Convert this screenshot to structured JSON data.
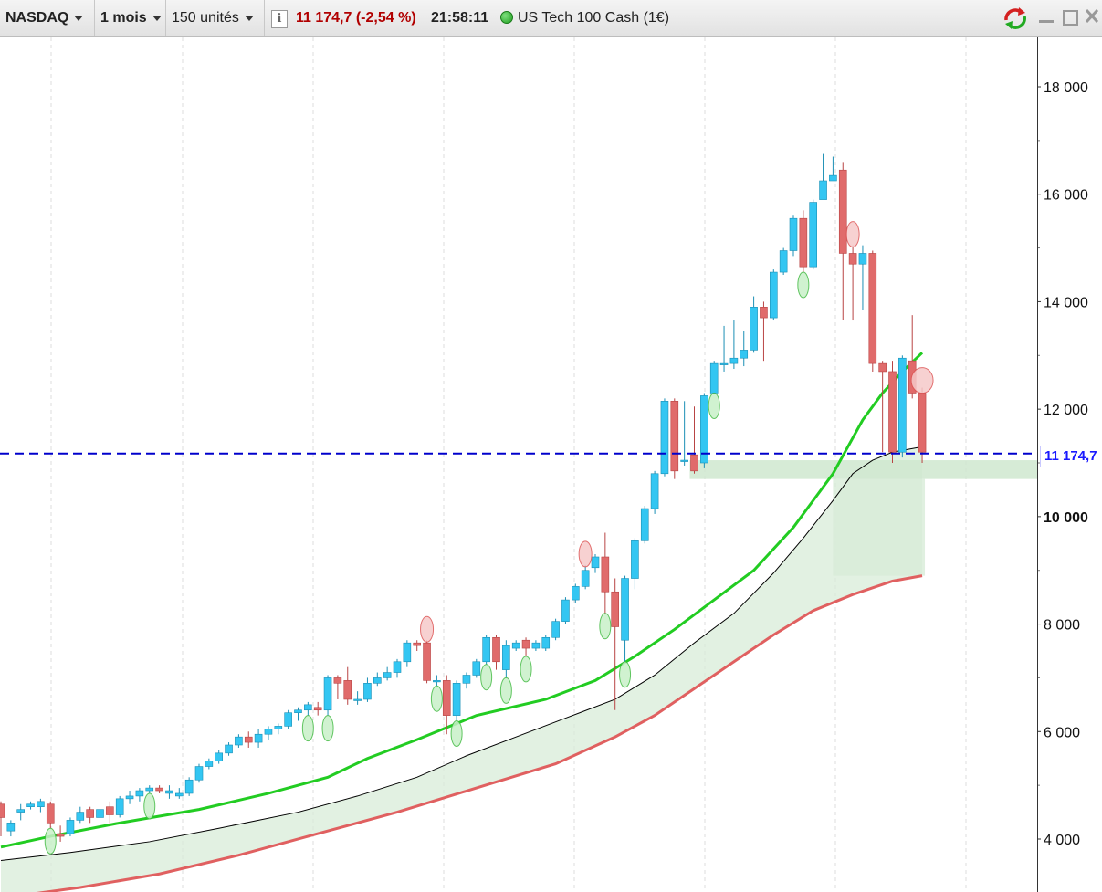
{
  "toolbar": {
    "symbol": "NASDAQ",
    "period": "1 mois",
    "units": "150 unités",
    "price": "11 174,7 (-2,54 %)",
    "time": "21:58:11",
    "instrument": "US Tech 100 Cash (1€)",
    "icons": [
      "info-icon",
      "refresh-icon",
      "minimize-icon",
      "maximize-icon",
      "close-icon"
    ]
  },
  "colors": {
    "bull_candle": "#33c6f2",
    "bear_candle": "#e06b6b",
    "ma_fast": "#22cc22",
    "ma_mid": "#000000",
    "ma_slow": "#e06060",
    "current_price_line": "#0000cc",
    "band_fill": "#d8ecd8"
  },
  "chart_data": {
    "type": "candlestick",
    "yticks": [
      "18 000",
      "16 000",
      "14 000",
      "12 000",
      "10 000",
      "8 000",
      "6 000",
      "4 000"
    ],
    "ytick_values": [
      18000,
      16000,
      14000,
      12000,
      10000,
      8000,
      6000,
      4000
    ],
    "ylim": [
      3100,
      19000
    ],
    "current_price": 11174.7,
    "current_price_label": "11 174,7",
    "candles": [
      [
        4650,
        4400,
        4050,
        4700
      ],
      [
        4150,
        4300,
        4050,
        4350
      ],
      [
        4500,
        4550,
        4350,
        4650
      ],
      [
        4600,
        4650,
        4550,
        4700
      ],
      [
        4600,
        4700,
        4500,
        4750
      ],
      [
        4650,
        4300,
        4200,
        4700
      ],
      [
        4100,
        4050,
        3950,
        4250
      ],
      [
        4100,
        4350,
        4050,
        4400
      ],
      [
        4350,
        4500,
        4300,
        4600
      ],
      [
        4550,
        4400,
        4300,
        4600
      ],
      [
        4400,
        4550,
        4300,
        4650
      ],
      [
        4600,
        4450,
        4250,
        4700
      ],
      [
        4450,
        4750,
        4400,
        4800
      ],
      [
        4750,
        4800,
        4650,
        4900
      ],
      [
        4800,
        4900,
        4700,
        4950
      ],
      [
        4900,
        4950,
        4850,
        5000
      ],
      [
        4950,
        4900,
        4850,
        5000
      ],
      [
        4850,
        4900,
        4750,
        5000
      ],
      [
        4800,
        4850,
        4750,
        4950
      ],
      [
        4850,
        5100,
        4800,
        5150
      ],
      [
        5100,
        5350,
        5050,
        5400
      ],
      [
        5350,
        5450,
        5300,
        5500
      ],
      [
        5450,
        5600,
        5400,
        5650
      ],
      [
        5600,
        5750,
        5550,
        5800
      ],
      [
        5750,
        5900,
        5700,
        5950
      ],
      [
        5900,
        5800,
        5700,
        6000
      ],
      [
        5800,
        5950,
        5700,
        6050
      ],
      [
        5950,
        6050,
        5850,
        6100
      ],
      [
        6050,
        6100,
        5950,
        6150
      ],
      [
        6100,
        6350,
        6050,
        6400
      ],
      [
        6350,
        6400,
        6200,
        6450
      ],
      [
        6400,
        6500,
        6300,
        6550
      ],
      [
        6450,
        6400,
        6300,
        6550
      ],
      [
        6400,
        7000,
        6300,
        7050
      ],
      [
        7000,
        6900,
        6600,
        7050
      ],
      [
        6950,
        6600,
        6500,
        7200
      ],
      [
        6600,
        6600,
        6500,
        6750
      ],
      [
        6600,
        6900,
        6550,
        7000
      ],
      [
        6900,
        7000,
        6850,
        7100
      ],
      [
        7000,
        7100,
        6950,
        7200
      ],
      [
        7100,
        7300,
        7000,
        7350
      ],
      [
        7300,
        7650,
        7200,
        7700
      ],
      [
        7650,
        7600,
        7500,
        7700
      ],
      [
        7650,
        6950,
        6900,
        7700
      ],
      [
        6950,
        6950,
        6850,
        7050
      ],
      [
        6950,
        6300,
        5950,
        7050
      ],
      [
        6300,
        6900,
        6200,
        6950
      ],
      [
        6900,
        7050,
        6800,
        7100
      ],
      [
        7050,
        7300,
        7000,
        7350
      ],
      [
        7300,
        7750,
        7250,
        7800
      ],
      [
        7750,
        7300,
        7150,
        7800
      ],
      [
        7150,
        7600,
        7000,
        7700
      ],
      [
        7550,
        7650,
        7500,
        7700
      ],
      [
        7700,
        7550,
        7400,
        7750
      ],
      [
        7550,
        7650,
        7500,
        7700
      ],
      [
        7550,
        7750,
        7500,
        7800
      ],
      [
        7750,
        8050,
        7700,
        8100
      ],
      [
        8050,
        8450,
        8000,
        8500
      ],
      [
        8450,
        8700,
        8400,
        8750
      ],
      [
        8700,
        9000,
        8650,
        9100
      ],
      [
        9050,
        9250,
        8950,
        9300
      ],
      [
        9250,
        8600,
        8200,
        9700
      ],
      [
        8600,
        7950,
        6400,
        8850
      ],
      [
        7700,
        8850,
        7300,
        8900
      ],
      [
        8850,
        9550,
        8650,
        9600
      ],
      [
        9550,
        10150,
        9500,
        10200
      ],
      [
        10150,
        10800,
        10050,
        10850
      ],
      [
        10800,
        12150,
        10750,
        12200
      ],
      [
        12150,
        10850,
        10700,
        12200
      ],
      [
        11050,
        11050,
        10950,
        12150
      ],
      [
        11150,
        10850,
        10800,
        12050
      ],
      [
        11000,
        12250,
        10900,
        12300
      ],
      [
        12300,
        12850,
        12300,
        12900
      ],
      [
        12850,
        12850,
        12700,
        13550
      ],
      [
        12850,
        12950,
        12750,
        13650
      ],
      [
        12950,
        13100,
        12800,
        13450
      ],
      [
        13100,
        13900,
        13050,
        14100
      ],
      [
        13900,
        13700,
        12900,
        14000
      ],
      [
        13700,
        14550,
        13650,
        14600
      ],
      [
        14550,
        14950,
        14500,
        15000
      ],
      [
        14950,
        15550,
        14850,
        15600
      ],
      [
        15550,
        14650,
        14550,
        15700
      ],
      [
        14650,
        15850,
        14600,
        15900
      ],
      [
        15900,
        16250,
        15950,
        16750
      ],
      [
        16250,
        16350,
        16250,
        16700
      ],
      [
        16450,
        14900,
        13650,
        16600
      ],
      [
        14900,
        14700,
        13650,
        15050
      ],
      [
        14700,
        14900,
        13850,
        15050
      ],
      [
        14900,
        12850,
        12700,
        14950
      ],
      [
        12850,
        12700,
        11200,
        12900
      ],
      [
        12700,
        11200,
        11000,
        12900
      ],
      [
        11200,
        12950,
        11100,
        13000
      ],
      [
        12900,
        12300,
        12200,
        13750
      ],
      [
        12300,
        11200,
        11000,
        12400
      ]
    ],
    "ma_fast": [
      [
        0,
        3850
      ],
      [
        5,
        4050
      ],
      [
        12,
        4300
      ],
      [
        20,
        4550
      ],
      [
        27,
        4850
      ],
      [
        33,
        5150
      ],
      [
        37,
        5500
      ],
      [
        42,
        5850
      ],
      [
        48,
        6300
      ],
      [
        55,
        6600
      ],
      [
        60,
        6950
      ],
      [
        64,
        7400
      ],
      [
        68,
        7900
      ],
      [
        72,
        8450
      ],
      [
        76,
        9000
      ],
      [
        80,
        9800
      ],
      [
        84,
        10800
      ],
      [
        87,
        11800
      ],
      [
        89,
        12300
      ],
      [
        91,
        12700
      ],
      [
        93,
        13050
      ]
    ],
    "ma_mid": [
      [
        0,
        3600
      ],
      [
        7,
        3750
      ],
      [
        15,
        3950
      ],
      [
        22,
        4200
      ],
      [
        30,
        4500
      ],
      [
        36,
        4800
      ],
      [
        42,
        5150
      ],
      [
        47,
        5550
      ],
      [
        52,
        5900
      ],
      [
        57,
        6250
      ],
      [
        62,
        6600
      ],
      [
        66,
        7050
      ],
      [
        70,
        7650
      ],
      [
        74,
        8200
      ],
      [
        78,
        8950
      ],
      [
        81,
        9600
      ],
      [
        84,
        10300
      ],
      [
        86,
        10800
      ],
      [
        88,
        11050
      ],
      [
        90,
        11200
      ],
      [
        93,
        11300
      ]
    ],
    "ma_slow": [
      [
        0,
        2900
      ],
      [
        8,
        3100
      ],
      [
        16,
        3350
      ],
      [
        24,
        3700
      ],
      [
        32,
        4100
      ],
      [
        40,
        4500
      ],
      [
        48,
        4950
      ],
      [
        56,
        5400
      ],
      [
        62,
        5900
      ],
      [
        66,
        6300
      ],
      [
        70,
        6800
      ],
      [
        74,
        7300
      ],
      [
        78,
        7800
      ],
      [
        82,
        8250
      ],
      [
        86,
        8550
      ],
      [
        90,
        8800
      ],
      [
        93,
        8900
      ]
    ],
    "support_zone": [
      10700,
      11050
    ],
    "band": {
      "from_index": 0,
      "to_index": 93
    },
    "bull_markers": [
      5,
      15,
      31,
      33,
      44,
      46,
      49,
      51,
      53,
      61,
      63,
      72,
      81
    ],
    "bear_markers": [
      43,
      59,
      86,
      93
    ]
  }
}
